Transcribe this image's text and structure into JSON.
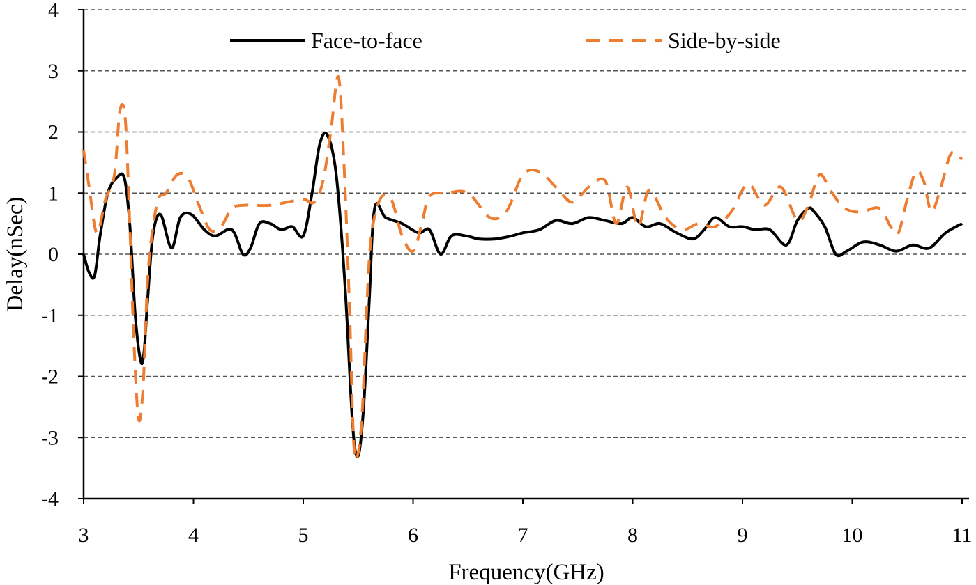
{
  "chart_data": {
    "type": "line",
    "xlabel": "Frequency(GHz)",
    "ylabel": "Delay(nSec)",
    "xlim": [
      3,
      11
    ],
    "ylim": [
      -4,
      4
    ],
    "xticks": [
      3,
      4,
      5,
      6,
      7,
      8,
      9,
      10,
      11
    ],
    "yticks": [
      4,
      3,
      2,
      1,
      0,
      -1,
      -2,
      -3,
      -4
    ],
    "grid": "horizontal dashed",
    "legend_position": "top",
    "series": [
      {
        "name": "Face-to-face",
        "color": "#000000",
        "style": "solid",
        "x": [
          3.0,
          3.05,
          3.1,
          3.15,
          3.22,
          3.3,
          3.37,
          3.42,
          3.47,
          3.52,
          3.55,
          3.58,
          3.63,
          3.7,
          3.8,
          3.88,
          3.98,
          4.1,
          4.2,
          4.35,
          4.45,
          4.52,
          4.6,
          4.7,
          4.8,
          4.9,
          5.0,
          5.08,
          5.15,
          5.22,
          5.3,
          5.38,
          5.45,
          5.5,
          5.55,
          5.6,
          5.65,
          5.75,
          5.9,
          6.05,
          6.15,
          6.25,
          6.35,
          6.48,
          6.6,
          6.75,
          6.9,
          7.0,
          7.15,
          7.3,
          7.45,
          7.6,
          7.75,
          7.9,
          8.0,
          8.12,
          8.25,
          8.4,
          8.55,
          8.65,
          8.75,
          8.88,
          9.0,
          9.12,
          9.25,
          9.4,
          9.5,
          9.6,
          9.65,
          9.75,
          9.85,
          9.95,
          10.1,
          10.25,
          10.4,
          10.55,
          10.7,
          10.85,
          11.0
        ],
        "y": [
          0.0,
          -0.3,
          -0.35,
          0.3,
          1.0,
          1.25,
          1.25,
          0.5,
          -1.0,
          -1.75,
          -1.6,
          -0.8,
          0.3,
          0.65,
          0.1,
          0.6,
          0.65,
          0.4,
          0.3,
          0.4,
          0.0,
          0.1,
          0.5,
          0.5,
          0.4,
          0.45,
          0.3,
          1.0,
          1.8,
          1.95,
          1.3,
          -0.5,
          -2.8,
          -3.3,
          -2.5,
          -0.8,
          0.75,
          0.6,
          0.5,
          0.35,
          0.4,
          0.0,
          0.3,
          0.3,
          0.25,
          0.25,
          0.3,
          0.35,
          0.4,
          0.55,
          0.5,
          0.6,
          0.55,
          0.5,
          0.6,
          0.45,
          0.5,
          0.35,
          0.25,
          0.4,
          0.6,
          0.45,
          0.45,
          0.4,
          0.4,
          0.15,
          0.55,
          0.75,
          0.7,
          0.45,
          0.0,
          0.05,
          0.2,
          0.15,
          0.05,
          0.15,
          0.1,
          0.35,
          0.5
        ]
      },
      {
        "name": "Side-by-side",
        "color": "#ED7D31",
        "style": "dashed",
        "x": [
          3.0,
          3.05,
          3.12,
          3.2,
          3.28,
          3.33,
          3.38,
          3.42,
          3.46,
          3.5,
          3.54,
          3.58,
          3.62,
          3.68,
          3.75,
          3.85,
          3.95,
          4.05,
          4.15,
          4.25,
          4.35,
          4.45,
          4.55,
          4.7,
          4.85,
          5.0,
          5.1,
          5.18,
          5.25,
          5.32,
          5.37,
          5.42,
          5.46,
          5.5,
          5.54,
          5.58,
          5.62,
          5.7,
          5.8,
          5.9,
          6.0,
          6.08,
          6.15,
          6.3,
          6.5,
          6.7,
          6.85,
          7.0,
          7.15,
          7.3,
          7.45,
          7.6,
          7.75,
          7.85,
          7.95,
          8.05,
          8.15,
          8.3,
          8.45,
          8.6,
          8.75,
          8.9,
          9.05,
          9.2,
          9.35,
          9.5,
          9.6,
          9.7,
          9.8,
          9.9,
          10.0,
          10.1,
          10.25,
          10.35,
          10.42,
          10.5,
          10.58,
          10.65,
          10.72,
          10.8,
          10.9,
          11.0
        ],
        "y": [
          1.7,
          1.1,
          0.35,
          0.9,
          1.3,
          2.35,
          2.2,
          0.5,
          -1.5,
          -2.7,
          -2.2,
          -0.5,
          0.3,
          0.9,
          1.0,
          1.3,
          1.25,
          0.8,
          0.4,
          0.45,
          0.75,
          0.8,
          0.8,
          0.8,
          0.85,
          0.9,
          0.85,
          1.2,
          2.0,
          2.9,
          1.5,
          -0.8,
          -3.1,
          -3.25,
          -2.5,
          -0.8,
          0.3,
          0.9,
          0.9,
          0.3,
          0.05,
          0.5,
          0.95,
          1.0,
          1.0,
          0.6,
          0.7,
          1.3,
          1.35,
          1.1,
          0.85,
          1.1,
          1.2,
          0.5,
          1.1,
          0.45,
          1.05,
          0.6,
          0.4,
          0.5,
          0.45,
          0.7,
          1.15,
          0.8,
          1.1,
          0.55,
          0.8,
          1.3,
          1.05,
          0.8,
          0.7,
          0.7,
          0.75,
          0.45,
          0.35,
          0.9,
          1.35,
          1.2,
          0.7,
          1.05,
          1.65,
          1.55
        ]
      }
    ]
  }
}
